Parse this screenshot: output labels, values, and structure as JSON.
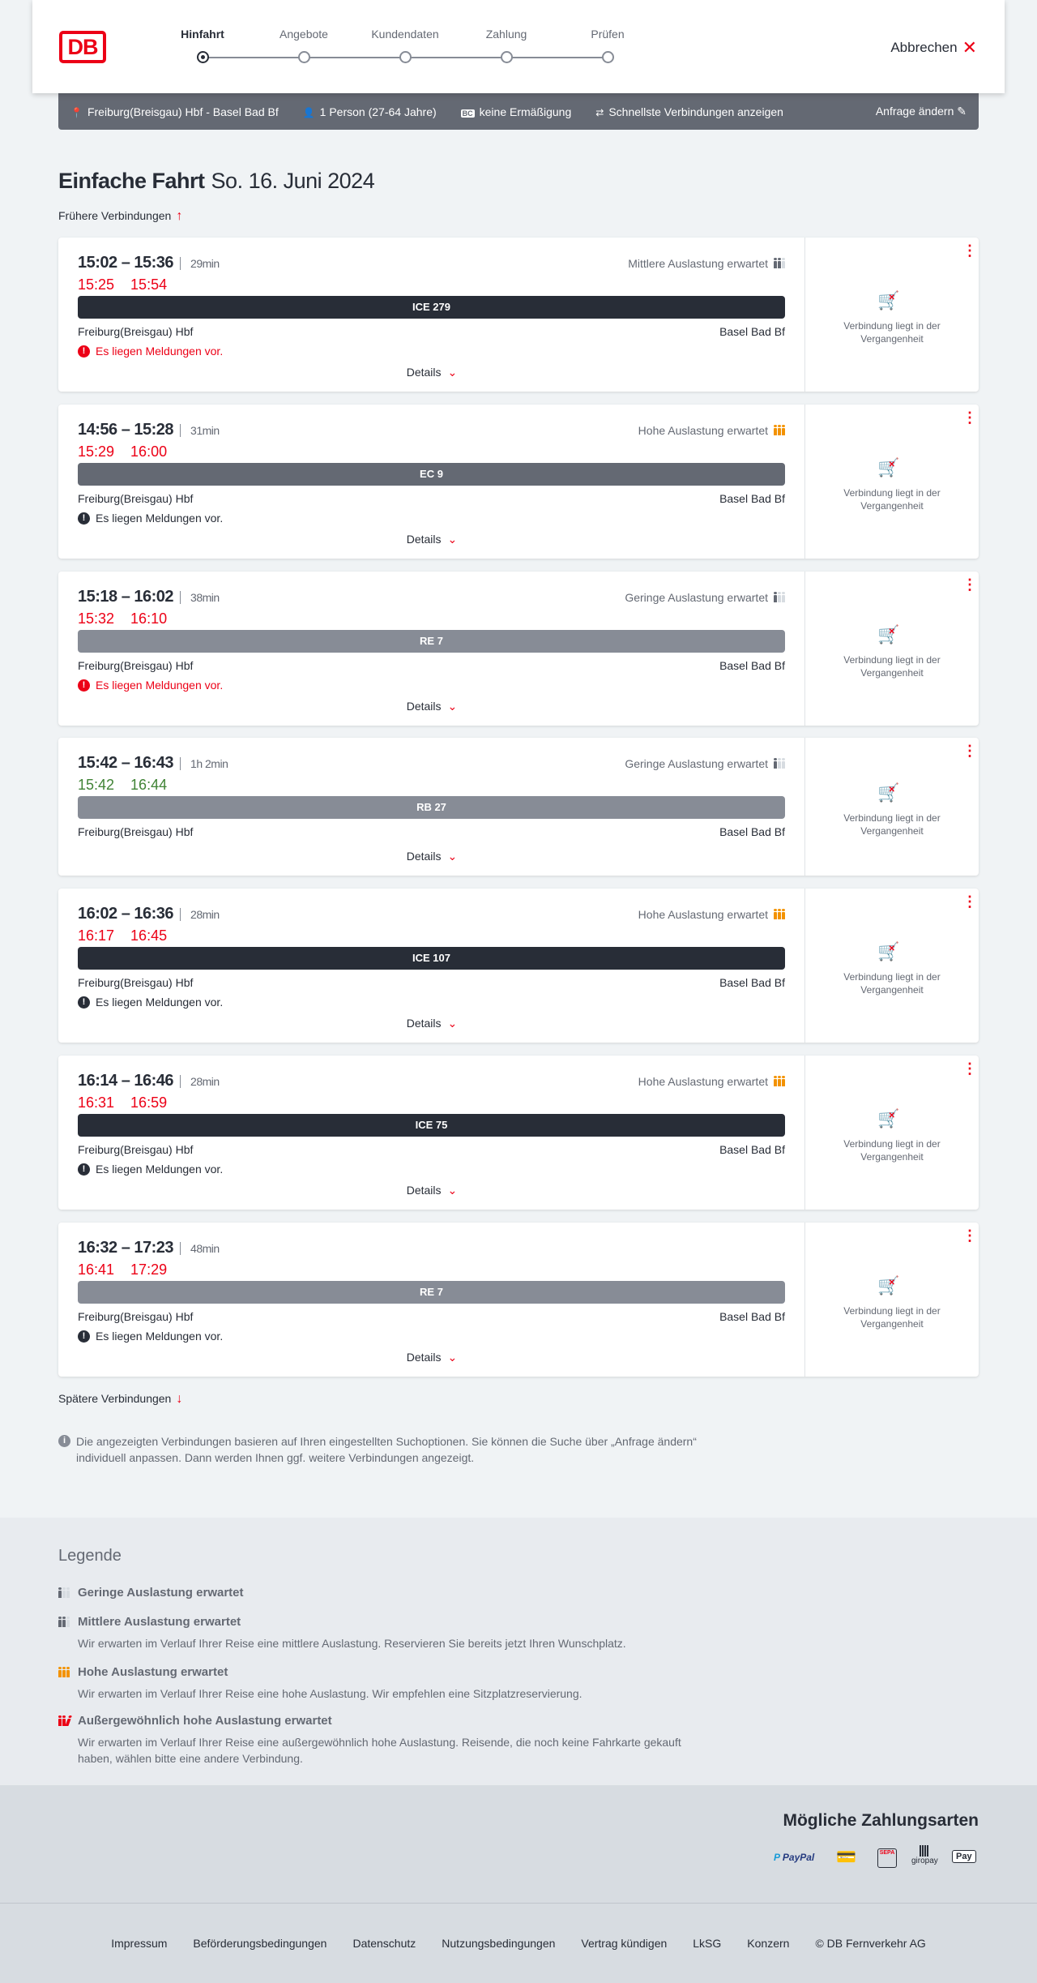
{
  "header": {
    "logo": "DB",
    "steps": [
      {
        "label": "Hinfahrt",
        "active": true
      },
      {
        "label": "Angebote",
        "active": false
      },
      {
        "label": "Kundendaten",
        "active": false
      },
      {
        "label": "Zahlung",
        "active": false
      },
      {
        "label": "Prüfen",
        "active": false
      }
    ],
    "cancel": "Abbrechen"
  },
  "infobar": {
    "route": "Freiburg(Breisgau) Hbf - Basel Bad Bf",
    "persons": "1 Person (27-64 Jahre)",
    "discount": "keine Ermäßigung",
    "option": "Schnellste Verbindungen anzeigen",
    "edit": "Anfrage ändern"
  },
  "title": {
    "main": "Einfache Fahrt",
    "date": "So. 16. Juni 2024"
  },
  "earlier": "Frühere Verbindungen",
  "later": "Spätere Verbindungen",
  "colors": {
    "red": "#ec0016",
    "green": "#408335",
    "orange": "#f39200",
    "ice": "#282d37",
    "ec": "#646973",
    "regional": "#878c96"
  },
  "connections": [
    {
      "times": "15:02 – 15:36",
      "duration": "29min",
      "rt_dep": "15:25",
      "rt_arr": "15:54",
      "rt_status": "delayed",
      "load": "Mittlere Auslastung erwartet",
      "load_level": 2,
      "train": "ICE 279",
      "train_type": "ice",
      "from": "Freiburg(Breisgau) Hbf",
      "to": "Basel Bad Bf",
      "message": "Es liegen Meldungen vor.",
      "message_severity": "high",
      "details": "Details",
      "status": "Verbindung liegt in der Vergangenheit"
    },
    {
      "times": "14:56 – 15:28",
      "duration": "31min",
      "rt_dep": "15:29",
      "rt_arr": "16:00",
      "rt_status": "delayed",
      "load": "Hohe Auslastung erwartet",
      "load_level": 3,
      "train": "EC 9",
      "train_type": "ec",
      "from": "Freiburg(Breisgau) Hbf",
      "to": "Basel Bad Bf",
      "message": "Es liegen Meldungen vor.",
      "message_severity": "normal",
      "details": "Details",
      "status": "Verbindung liegt in der Vergangenheit"
    },
    {
      "times": "15:18 – 16:02",
      "duration": "38min",
      "rt_dep": "15:32",
      "rt_arr": "16:10",
      "rt_status": "delayed",
      "load": "Geringe Auslastung erwartet",
      "load_level": 1,
      "train": "RE 7",
      "train_type": "regional",
      "from": "Freiburg(Breisgau) Hbf",
      "to": "Basel Bad Bf",
      "message": "Es liegen Meldungen vor.",
      "message_severity": "high",
      "details": "Details",
      "status": "Verbindung liegt in der Vergangenheit"
    },
    {
      "times": "15:42 – 16:43",
      "duration": "1h 2min",
      "rt_dep": "15:42",
      "rt_arr": "16:44",
      "rt_status": "ontime",
      "load": "Geringe Auslastung erwartet",
      "load_level": 1,
      "train": "RB 27",
      "train_type": "regional",
      "from": "Freiburg(Breisgau) Hbf",
      "to": "Basel Bad Bf",
      "message": null,
      "details": "Details",
      "status": "Verbindung liegt in der Vergangenheit"
    },
    {
      "times": "16:02 – 16:36",
      "duration": "28min",
      "rt_dep": "16:17",
      "rt_arr": "16:45",
      "rt_status": "delayed",
      "load": "Hohe Auslastung erwartet",
      "load_level": 3,
      "train": "ICE 107",
      "train_type": "ice",
      "from": "Freiburg(Breisgau) Hbf",
      "to": "Basel Bad Bf",
      "message": "Es liegen Meldungen vor.",
      "message_severity": "normal",
      "details": "Details",
      "status": "Verbindung liegt in der Vergangenheit"
    },
    {
      "times": "16:14 – 16:46",
      "duration": "28min",
      "rt_dep": "16:31",
      "rt_arr": "16:59",
      "rt_status": "delayed",
      "load": "Hohe Auslastung erwartet",
      "load_level": 3,
      "train": "ICE 75",
      "train_type": "ice",
      "from": "Freiburg(Breisgau) Hbf",
      "to": "Basel Bad Bf",
      "message": "Es liegen Meldungen vor.",
      "message_severity": "normal",
      "details": "Details",
      "status": "Verbindung liegt in der Vergangenheit"
    },
    {
      "times": "16:32 – 17:23",
      "duration": "48min",
      "rt_dep": "16:41",
      "rt_arr": "17:29",
      "rt_status": "delayed",
      "load": "",
      "load_level": 0,
      "train": "RE 7",
      "train_type": "regional",
      "from": "Freiburg(Breisgau) Hbf",
      "to": "Basel Bad Bf",
      "message": "Es liegen Meldungen vor.",
      "message_severity": "normal",
      "details": "Details",
      "status": "Verbindung liegt in der Vergangenheit"
    }
  ],
  "note": "Die angezeigten Verbindungen basieren auf Ihren eingestellten Suchoptionen. Sie können die Suche über „Anfrage ändern“ individuell anpassen. Dann werden Ihnen ggf. weitere Verbindungen angezeigt.",
  "legend": {
    "title": "Legende",
    "items": [
      {
        "level": 1,
        "title": "Geringe Auslastung erwartet",
        "text": ""
      },
      {
        "level": 2,
        "title": "Mittlere Auslastung erwartet",
        "text": "Wir erwarten im Verlauf Ihrer Reise eine mittlere Auslastung. Reservieren Sie bereits jetzt Ihren Wunschplatz."
      },
      {
        "level": 3,
        "title": "Hohe Auslastung erwartet",
        "text": "Wir erwarten im Verlauf Ihrer Reise eine hohe Auslastung. Wir empfehlen eine Sitzplatzreservierung."
      },
      {
        "level": 4,
        "title": "Außergewöhnlich hohe Auslastung erwartet",
        "text": "Wir erwarten im Verlauf Ihrer Reise eine außergewöhnlich hohe Auslastung. Reisende, die noch keine Fahrkarte gekauft haben, wählen bitte eine andere Verbindung."
      }
    ]
  },
  "payment": {
    "title": "Mögliche Zahlungsarten",
    "methods": [
      "PayPal",
      "Kreditkarte",
      "SEPA",
      "giropay",
      "Apple Pay"
    ]
  },
  "footer": [
    "Impressum",
    "Beförderungsbedingungen",
    "Datenschutz",
    "Nutzungsbedingungen",
    "Vertrag kündigen",
    "LkSG",
    "Konzern",
    "© DB Fernverkehr AG"
  ]
}
